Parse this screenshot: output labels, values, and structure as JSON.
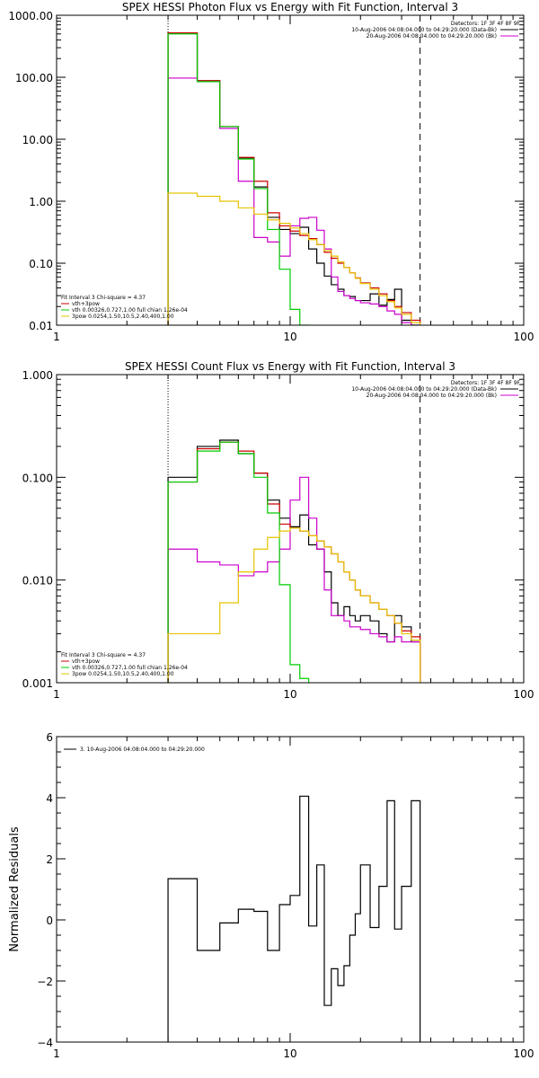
{
  "chart_data": [
    {
      "type": "line",
      "title": "SPEX HESSI Photon Flux vs Energy with Fit Function, Interval 3",
      "xscale": "log",
      "yscale": "log",
      "xlim": [
        1,
        100
      ],
      "ylim": [
        0.01,
        1000
      ],
      "xticks": [
        1,
        10,
        100
      ],
      "xtick_labels": [
        "1",
        "10",
        "100"
      ],
      "yticks": [
        0.01,
        0.1,
        1,
        10,
        100,
        1000
      ],
      "ytick_labels": [
        "0.01",
        "0.10",
        "1.00",
        "10.00",
        "100.00",
        "1000.00"
      ],
      "ylabel": "",
      "edges": [
        3,
        4,
        5,
        6,
        7,
        8,
        9,
        10,
        11,
        12,
        13,
        14,
        15,
        16,
        17,
        18,
        19,
        20,
        22,
        24,
        26,
        28,
        30,
        33,
        36
      ],
      "dotted_line_x": 3,
      "dashed_line_x": 36,
      "legend_topright": [
        {
          "text": "Detectors: 1F 3F 4F 8F 9F",
          "color": ""
        },
        {
          "text": "10-Aug-2006 04:08:04.000 to 04:29:20.000 (Data-Bk)",
          "color": "#000000"
        },
        {
          "text": "20-Aug-2006 04:08:04.000 to 04:29:20.000 (Bk)",
          "color": "#cc00cc"
        }
      ],
      "legend_bottomleft": [
        {
          "text": "Fit Interval 3   Chi-square = 4.37",
          "color": ""
        },
        {
          "text": "vth+3pow",
          "color": "#cc0000"
        },
        {
          "text": "vth 0.00326,0.727,1.00   full chian 1.26e-04",
          "color": "#00cc00"
        },
        {
          "text": "3pow 0.0254,1.50,10.5,2.40,400,1.00",
          "color": "#e6c300"
        }
      ],
      "series": [
        {
          "name": "Data-Bk",
          "color": "#000000",
          "values": [
            520,
            88,
            16,
            5,
            1.7,
            0.55,
            0.35,
            0.3,
            0.38,
            0.17,
            0.1,
            0.062,
            0.045,
            0.038,
            0.03,
            0.029,
            0.025,
            0.025,
            0.032,
            0.021,
            0.026,
            0.038,
            0.012,
            0.01
          ]
        },
        {
          "name": "Bk",
          "color": "#cc00cc",
          "values": [
            97,
            85,
            15,
            2.1,
            0.26,
            0.22,
            0.13,
            0.4,
            0.53,
            0.55,
            0.34,
            0.17,
            0.06,
            0.035,
            0.03,
            0.027,
            0.025,
            0.023,
            0.022,
            0.02,
            0.017,
            0.015,
            0.011,
            0.01
          ]
        },
        {
          "name": "vth+3pow",
          "color": "#cc0000",
          "values": [
            520,
            88,
            16,
            5.1,
            2.1,
            0.65,
            0.4,
            0.33,
            0.28,
            0.25,
            0.2,
            0.15,
            0.12,
            0.1,
            0.085,
            0.07,
            0.058,
            0.048,
            0.04,
            0.032,
            0.025,
            0.02,
            0.016,
            0.012
          ]
        },
        {
          "name": "vth",
          "color": "#00cc00",
          "values": [
            500,
            85,
            16,
            4.8,
            1.6,
            0.35,
            0.08,
            0.018,
            0.008
          ]
        },
        {
          "name": "3pow",
          "color": "#e6c300",
          "values": [
            1.35,
            1.2,
            1.0,
            0.78,
            0.62,
            0.5,
            0.44,
            0.37,
            0.3,
            0.24,
            0.2,
            0.16,
            0.13,
            0.105,
            0.085,
            0.07,
            0.057,
            0.047,
            0.038,
            0.03,
            0.024,
            0.019,
            0.015,
            0.011
          ]
        }
      ]
    },
    {
      "type": "line",
      "title": "SPEX HESSI Count Flux vs Energy with Fit Function, Interval 3",
      "xscale": "log",
      "yscale": "log",
      "xlim": [
        1,
        100
      ],
      "ylim": [
        0.001,
        1
      ],
      "xticks": [
        1,
        10,
        100
      ],
      "xtick_labels": [
        "1",
        "10",
        "100"
      ],
      "yticks": [
        0.001,
        0.01,
        0.1,
        1
      ],
      "ytick_labels": [
        "0.001",
        "0.010",
        "0.100",
        "1.000"
      ],
      "ylabel": "",
      "edges": [
        3,
        4,
        5,
        6,
        7,
        8,
        9,
        10,
        11,
        12,
        13,
        14,
        15,
        16,
        17,
        18,
        19,
        20,
        22,
        24,
        26,
        28,
        30,
        33,
        36
      ],
      "dotted_line_x": 3,
      "dashed_line_x": 36,
      "legend_topright": [
        {
          "text": "Detectors: 1F 3F 4F 8F 9F",
          "color": ""
        },
        {
          "text": "10-Aug-2006 04:08:04.000 to 04:29:20.000 (Data-Bk)",
          "color": "#000000"
        },
        {
          "text": "20-Aug-2006 04:08:04.000 to 04:29:20.000 (Bk)",
          "color": "#cc00cc"
        }
      ],
      "legend_bottomleft": [
        {
          "text": "Fit Interval 3   Chi-square = 4.37",
          "color": ""
        },
        {
          "text": "vth+3pow",
          "color": "#cc0000"
        },
        {
          "text": "vth 0.00326,0.727,1.00   full chian 1.26e-04",
          "color": "#00cc00"
        },
        {
          "text": "3pow 0.0254,1.50,10.5,2.40,400,1.00",
          "color": "#e6c300"
        }
      ],
      "series": [
        {
          "name": "Data-Bk",
          "color": "#000000",
          "values": [
            0.1,
            0.2,
            0.23,
            0.17,
            0.11,
            0.06,
            0.04,
            0.033,
            0.043,
            0.022,
            0.02,
            0.012,
            0.006,
            0.0045,
            0.0055,
            0.0045,
            0.004,
            0.0045,
            0.004,
            0.003,
            0.0025,
            0.0045,
            0.0035,
            0.0025
          ]
        },
        {
          "name": "Bk",
          "color": "#cc00cc",
          "values": [
            0.02,
            0.015,
            0.014,
            0.011,
            0.012,
            0.015,
            0.02,
            0.06,
            0.1,
            0.04,
            0.02,
            0.008,
            0.0045,
            0.0045,
            0.004,
            0.0035,
            0.0035,
            0.0033,
            0.003,
            0.0028,
            0.0025,
            0.0028,
            0.0025,
            0.0025
          ]
        },
        {
          "name": "vth+3pow",
          "color": "#cc0000",
          "values": [
            0.09,
            0.19,
            0.22,
            0.18,
            0.11,
            0.055,
            0.035,
            0.032,
            0.03,
            0.027,
            0.024,
            0.021,
            0.018,
            0.015,
            0.012,
            0.01,
            0.008,
            0.007,
            0.006,
            0.0052,
            0.0045,
            0.0038,
            0.0032,
            0.0028
          ]
        },
        {
          "name": "vth",
          "color": "#00cc00",
          "values": [
            0.09,
            0.18,
            0.22,
            0.17,
            0.1,
            0.045,
            0.009,
            0.0015,
            0.0011
          ]
        },
        {
          "name": "3pow",
          "color": "#e6c300",
          "values": [
            0.003,
            0.003,
            0.006,
            0.012,
            0.02,
            0.026,
            0.03,
            0.032,
            0.03,
            0.027,
            0.024,
            0.021,
            0.018,
            0.015,
            0.012,
            0.01,
            0.008,
            0.007,
            0.006,
            0.0052,
            0.0045,
            0.0038,
            0.003,
            0.0026
          ]
        }
      ]
    },
    {
      "type": "line",
      "title": "",
      "xscale": "log",
      "yscale": "linear",
      "xlim": [
        1,
        100
      ],
      "ylim": [
        -4,
        6
      ],
      "xticks": [
        1,
        10,
        100
      ],
      "xtick_labels": [
        "1",
        "10",
        "100"
      ],
      "yticks": [
        -4,
        -2,
        0,
        2,
        4,
        6
      ],
      "ytick_labels": [
        "−4",
        "−2",
        "0",
        "2",
        "4",
        "6"
      ],
      "ylabel": "Normalized Residuals",
      "edges": [
        3,
        4,
        5,
        6,
        7,
        8,
        9,
        10,
        11,
        12,
        13,
        14,
        15,
        16,
        17,
        18,
        19,
        20,
        22,
        24,
        26,
        28,
        30,
        33,
        36
      ],
      "legend_topright": [],
      "legend_topleft": [
        {
          "text": "3. 10-Aug-2006 04:08:04.000 to 04:29:20.000",
          "color": "#000000"
        }
      ],
      "legend_bottomleft": [],
      "series": [
        {
          "name": "3. 10-Aug-2006 04:08:04.000 to 04:29:20.000",
          "color": "#000000",
          "values": [
            1.35,
            -1.0,
            -0.1,
            0.35,
            0.28,
            -1.0,
            0.5,
            0.8,
            4.05,
            -0.2,
            1.8,
            -2.8,
            -1.6,
            -2.15,
            -1.5,
            -0.5,
            0.2,
            1.8,
            -0.25,
            1.1,
            3.9,
            -0.3,
            1.1,
            3.9
          ],
          "drop_to_axis": true
        }
      ]
    }
  ]
}
